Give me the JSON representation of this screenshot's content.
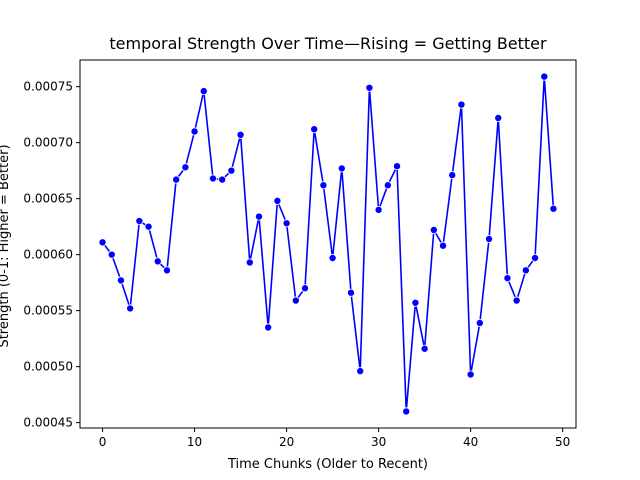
{
  "chart_data": {
    "type": "line",
    "title": "temporal Strength Over Time—Rising = Getting Better",
    "xlabel": "Time Chunks (Older to Recent)",
    "ylabel": "Strength (0-1: Higher = Better)",
    "xlim": [
      -2.45,
      51.45
    ],
    "ylim": [
      0.0004452,
      0.0007738
    ],
    "x_ticks": [
      0,
      10,
      20,
      30,
      40,
      50
    ],
    "y_ticks": [
      0.00045,
      0.0005,
      0.00055,
      0.0006,
      0.00065,
      0.0007,
      0.00075
    ],
    "y_tick_labels": [
      "0.00045",
      "0.00050",
      "0.00055",
      "0.00060",
      "0.00065",
      "0.00070",
      "0.00075"
    ],
    "grid": false,
    "series": [
      {
        "color": "#0000ff",
        "marker": "circle",
        "x": [
          0,
          1,
          2,
          3,
          4,
          5,
          6,
          7,
          8,
          9,
          10,
          11,
          12,
          13,
          14,
          15,
          16,
          17,
          18,
          19,
          20,
          21,
          22,
          23,
          24,
          25,
          26,
          27,
          28,
          29,
          30,
          31,
          32,
          33,
          34,
          35,
          36,
          37,
          38,
          39,
          40,
          41,
          42,
          43,
          44,
          45,
          46,
          47,
          48,
          49
        ],
        "values": [
          0.000611,
          0.0006,
          0.000577,
          0.000552,
          0.00063,
          0.000625,
          0.000594,
          0.000586,
          0.000667,
          0.000678,
          0.00071,
          0.000746,
          0.000668,
          0.000667,
          0.000675,
          0.000707,
          0.000593,
          0.000634,
          0.000535,
          0.000648,
          0.000628,
          0.000559,
          0.00057,
          0.000712,
          0.000662,
          0.000597,
          0.000677,
          0.000566,
          0.000496,
          0.000749,
          0.00064,
          0.000662,
          0.000679,
          0.00046,
          0.000557,
          0.000516,
          0.000622,
          0.000608,
          0.000671,
          0.000734,
          0.000493,
          0.000539,
          0.000614,
          0.000722,
          0.000579,
          0.000559,
          0.000586,
          0.000597,
          0.000759,
          0.000641
        ]
      }
    ]
  }
}
